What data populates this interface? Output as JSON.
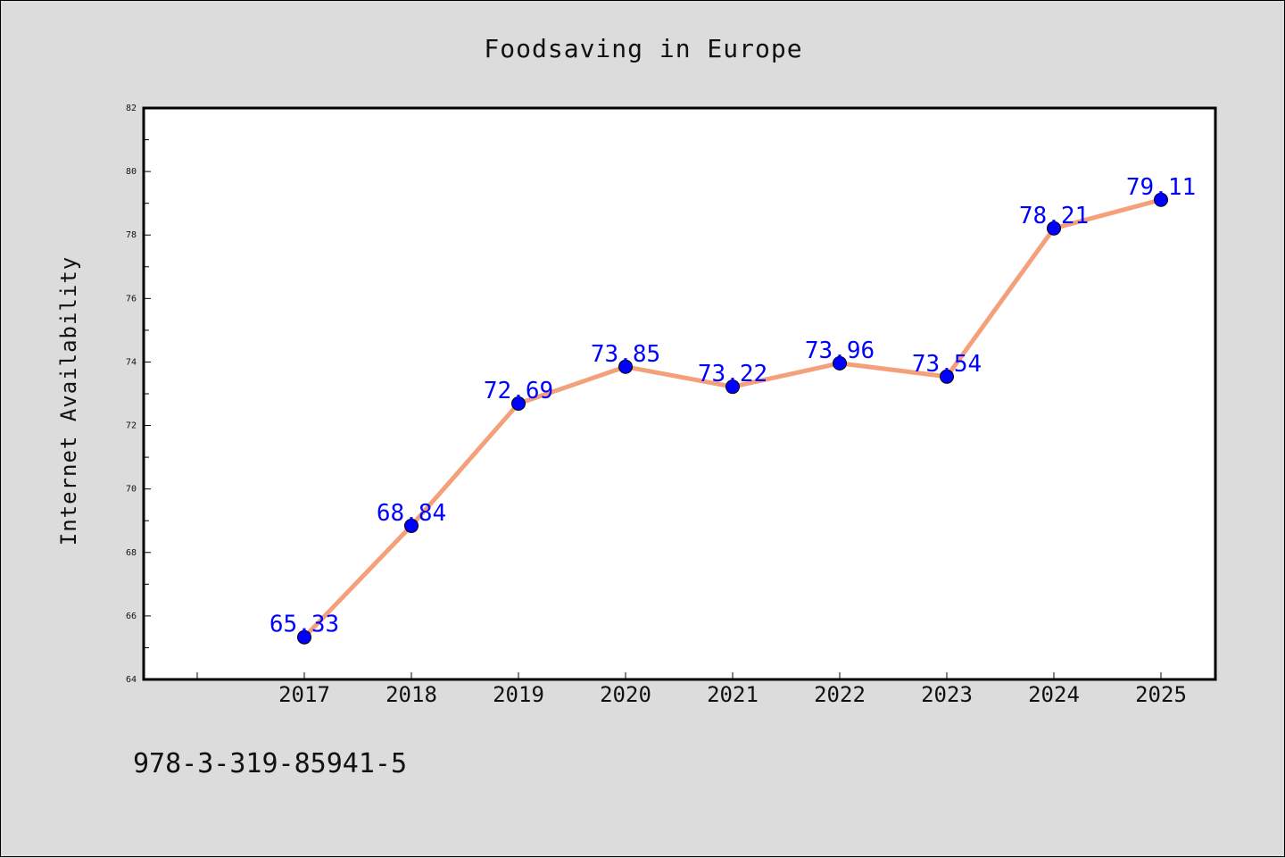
{
  "chart_data": {
    "type": "line",
    "title": "Foodsaving in Europe",
    "xlabel": "",
    "ylabel": "Internet Availability",
    "categories": [
      "2017",
      "2018",
      "2019",
      "2020",
      "2021",
      "2022",
      "2023",
      "2024",
      "2025"
    ],
    "series": [
      {
        "values": [
          65.33,
          68.84,
          72.69,
          73.85,
          73.22,
          73.96,
          73.54,
          78.21,
          79.11
        ],
        "labels": [
          "65.33",
          "68.84",
          "72.69",
          "73.85",
          "73.22",
          "73.96",
          "73.54",
          "78.21",
          "79.11"
        ],
        "line_color": "#f4a07a",
        "marker_color": "#0000ff"
      }
    ],
    "ylim": [
      64,
      82
    ],
    "yticks": [
      64,
      66,
      68,
      70,
      72,
      74,
      76,
      78,
      80,
      82
    ],
    "ytick_labels": [
      "64",
      "66",
      "68",
      "70",
      "72",
      "74",
      "76",
      "78",
      "80",
      "82"
    ],
    "grid": false,
    "legend": "none",
    "label_color": "#0000ff"
  },
  "footer": {
    "isbn": "978-3-319-85941-5"
  }
}
